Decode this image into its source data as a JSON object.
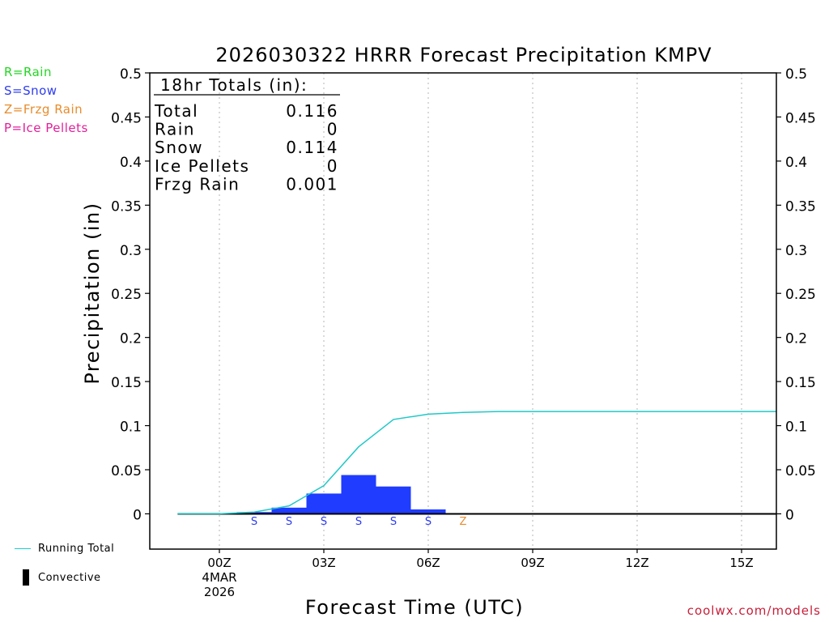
{
  "legend_codes": [
    {
      "label": "R=Rain",
      "color": "#22d622"
    },
    {
      "label": "S=Snow",
      "color": "#2d3cf0"
    },
    {
      "label": "Z=Frzg Rain",
      "color": "#e88c2c"
    },
    {
      "label": "P=Ice Pellets",
      "color": "#e0209a"
    }
  ],
  "bottom_legend": {
    "running_total": "Running Total",
    "convective": "Convective"
  },
  "credit": "coolwx.com/models",
  "totals_box": {
    "header": "18hr Totals (in):",
    "rows": [
      {
        "label": "Total",
        "value": "0.116"
      },
      {
        "label": "Rain",
        "value": "0"
      },
      {
        "label": "Snow",
        "value": "0.114"
      },
      {
        "label": "Ice Pellets",
        "value": "0"
      },
      {
        "label": "Frzg Rain",
        "value": "0.001"
      }
    ]
  },
  "chart_data": {
    "type": "bar",
    "title": "2026030322 HRRR Forecast Precipitation KMPV",
    "xlabel": "Forecast Time (UTC)",
    "ylabel": "Precipitation (in)",
    "ylim": [
      -0.04,
      0.5
    ],
    "xlim": [
      -2,
      16
    ],
    "yticks": [
      0,
      0.05,
      0.1,
      0.15,
      0.2,
      0.25,
      0.3,
      0.35,
      0.4,
      0.45,
      0.5
    ],
    "ytick_labels": [
      "0",
      "0.05",
      "0.1",
      "0.15",
      "0.2",
      "0.25",
      "0.3",
      "0.35",
      "0.4",
      "0.45",
      "0.5"
    ],
    "xticks": [
      {
        "x": 0,
        "lines": [
          "00Z",
          "4MAR",
          "2026"
        ]
      },
      {
        "x": 3,
        "lines": [
          "03Z"
        ]
      },
      {
        "x": 6,
        "lines": [
          "06Z"
        ]
      },
      {
        "x": 9,
        "lines": [
          "09Z"
        ]
      },
      {
        "x": 12,
        "lines": [
          "12Z"
        ]
      },
      {
        "x": 15,
        "lines": [
          "15Z"
        ]
      }
    ],
    "grid_x": [
      0,
      3,
      6,
      9,
      12,
      15
    ],
    "bar_color": "#1f3cff",
    "hourly_bars": [
      {
        "x_start": 0.5,
        "x_end": 1.5,
        "value": 0.002
      },
      {
        "x_start": 1.5,
        "x_end": 2.5,
        "value": 0.007
      },
      {
        "x_start": 2.5,
        "x_end": 3.5,
        "value": 0.023
      },
      {
        "x_start": 3.5,
        "x_end": 4.5,
        "value": 0.044
      },
      {
        "x_start": 4.5,
        "x_end": 5.5,
        "value": 0.031
      },
      {
        "x_start": 5.5,
        "x_end": 6.5,
        "value": 0.005
      }
    ],
    "precip_type_markers": [
      {
        "x": 1,
        "code": "S",
        "color": "#2d3cf0"
      },
      {
        "x": 2,
        "code": "S",
        "color": "#2d3cf0"
      },
      {
        "x": 3,
        "code": "S",
        "color": "#2d3cf0"
      },
      {
        "x": 4,
        "code": "S",
        "color": "#2d3cf0"
      },
      {
        "x": 5,
        "code": "S",
        "color": "#2d3cf0"
      },
      {
        "x": 6,
        "code": "S",
        "color": "#2d3cf0"
      },
      {
        "x": 7,
        "code": "Z",
        "color": "#e88c2c"
      }
    ],
    "running_total": {
      "name": "Running Total",
      "color": "#22c8c8",
      "x": [
        -1.2,
        0,
        1,
        2,
        3,
        4,
        5,
        6,
        7,
        8,
        9,
        10,
        11,
        12,
        13,
        14,
        15,
        16
      ],
      "y": [
        0,
        0,
        0.002,
        0.009,
        0.032,
        0.076,
        0.107,
        0.113,
        0.115,
        0.116,
        0.116,
        0.116,
        0.116,
        0.116,
        0.116,
        0.116,
        0.116,
        0.116
      ]
    },
    "convective_line": {
      "x_start": -1.2,
      "x_end": 16,
      "value": 0
    }
  }
}
